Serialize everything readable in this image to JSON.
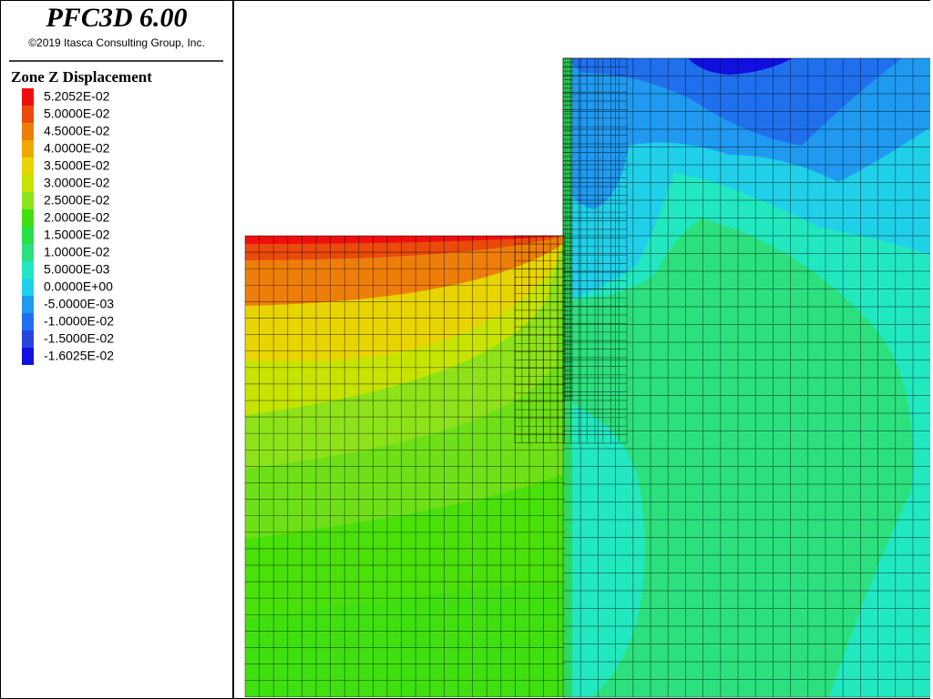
{
  "header": {
    "title": "PFC3D 6.00",
    "copyright": "©2019 Itasca Consulting Group, Inc."
  },
  "legend": {
    "title": "Zone Z Displacement",
    "entries": [
      {
        "label": "5.2052E-02",
        "color": "#ee1010"
      },
      {
        "label": "5.0000E-02",
        "color": "#ea4a0c"
      },
      {
        "label": "4.5000E-02",
        "color": "#ee7e0a"
      },
      {
        "label": "4.0000E-02",
        "color": "#f0a800"
      },
      {
        "label": "3.5000E-02",
        "color": "#e8d400"
      },
      {
        "label": "3.0000E-02",
        "color": "#c6e400"
      },
      {
        "label": "2.5000E-02",
        "color": "#8ee21a"
      },
      {
        "label": "2.0000E-02",
        "color": "#40e010"
      },
      {
        "label": "1.5000E-02",
        "color": "#2ae048"
      },
      {
        "label": "1.0000E-02",
        "color": "#2ce07e"
      },
      {
        "label": "5.0000E-03",
        "color": "#22e8c0"
      },
      {
        "label": "0.0000E+00",
        "color": "#20d0e8"
      },
      {
        "label": "-5.0000E-03",
        "color": "#209af0"
      },
      {
        "label": "-1.0000E-02",
        "color": "#2070ee"
      },
      {
        "label": "-1.5000E-02",
        "color": "#2a44e0"
      },
      {
        "label": "-1.6025E-02",
        "color": "#1010e0"
      }
    ]
  }
}
